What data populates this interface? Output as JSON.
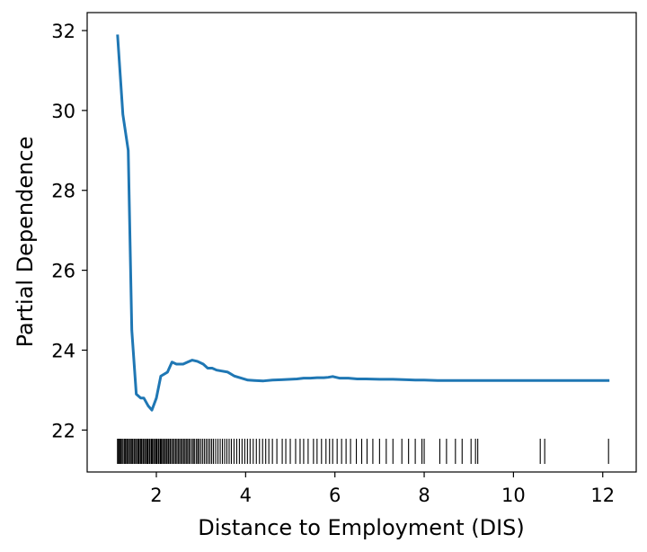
{
  "chart_data": {
    "type": "line",
    "title": "",
    "xlabel": "Distance to Employment (DIS)",
    "ylabel": "Partial Dependence",
    "xlim": [
      0.45,
      12.75
    ],
    "ylim": [
      20.95,
      32.45
    ],
    "xticks": [
      2,
      4,
      6,
      8,
      10,
      12
    ],
    "yticks": [
      22,
      24,
      26,
      28,
      30,
      32
    ],
    "grid": false,
    "line_color": "#1f77b4",
    "series": [
      {
        "x": [
          1.13,
          1.25,
          1.37,
          1.45,
          1.55,
          1.65,
          1.72,
          1.82,
          1.9,
          2.0,
          2.1,
          2.25,
          2.35,
          2.45,
          2.6,
          2.7,
          2.8,
          2.92,
          3.05,
          3.15,
          3.25,
          3.35,
          3.45,
          3.6,
          3.75,
          3.9,
          4.05,
          4.2,
          4.4,
          4.6,
          4.8,
          5.0,
          5.15,
          5.3,
          5.45,
          5.6,
          5.75,
          5.85,
          5.95,
          6.1,
          6.3,
          6.5,
          6.7,
          7.0,
          7.3,
          7.6,
          7.8,
          8.0,
          8.3,
          8.6,
          9.0,
          9.5,
          10.0,
          10.5,
          11.0,
          11.5,
          12.15
        ],
        "y": [
          31.9,
          29.9,
          29.0,
          24.5,
          22.9,
          22.8,
          22.8,
          22.6,
          22.5,
          22.8,
          23.35,
          23.45,
          23.7,
          23.65,
          23.65,
          23.7,
          23.75,
          23.72,
          23.65,
          23.55,
          23.55,
          23.5,
          23.48,
          23.45,
          23.35,
          23.3,
          23.25,
          23.24,
          23.23,
          23.25,
          23.26,
          23.27,
          23.28,
          23.3,
          23.3,
          23.31,
          23.31,
          23.32,
          23.34,
          23.3,
          23.3,
          23.28,
          23.28,
          23.27,
          23.27,
          23.26,
          23.25,
          23.25,
          23.24,
          23.24,
          23.24,
          23.24,
          23.24,
          23.24,
          23.24,
          23.24,
          23.24
        ]
      }
    ],
    "rug": [
      1.13,
      1.14,
      1.16,
      1.18,
      1.2,
      1.22,
      1.25,
      1.28,
      1.3,
      1.32,
      1.35,
      1.37,
      1.4,
      1.42,
      1.45,
      1.47,
      1.5,
      1.52,
      1.55,
      1.58,
      1.6,
      1.62,
      1.65,
      1.67,
      1.7,
      1.72,
      1.75,
      1.78,
      1.8,
      1.82,
      1.85,
      1.88,
      1.9,
      1.92,
      1.95,
      1.98,
      2.0,
      2.02,
      2.05,
      2.08,
      2.1,
      2.12,
      2.15,
      2.18,
      2.2,
      2.23,
      2.26,
      2.28,
      2.31,
      2.34,
      2.37,
      2.4,
      2.43,
      2.46,
      2.49,
      2.52,
      2.55,
      2.58,
      2.61,
      2.64,
      2.67,
      2.7,
      2.73,
      2.76,
      2.8,
      2.83,
      2.86,
      2.9,
      2.93,
      2.96,
      3.0,
      3.04,
      3.08,
      3.12,
      3.16,
      3.2,
      3.24,
      3.28,
      3.33,
      3.38,
      3.43,
      3.48,
      3.53,
      3.58,
      3.63,
      3.68,
      3.74,
      3.8,
      3.86,
      3.92,
      3.98,
      4.04,
      4.1,
      4.17,
      4.24,
      4.31,
      4.38,
      4.45,
      4.52,
      4.6,
      4.7,
      4.82,
      4.9,
      5.0,
      5.12,
      5.22,
      5.3,
      5.4,
      5.52,
      5.6,
      5.7,
      5.8,
      5.88,
      5.95,
      6.05,
      6.15,
      6.25,
      6.35,
      6.48,
      6.6,
      6.72,
      6.85,
      7.0,
      7.15,
      7.3,
      7.5,
      7.65,
      7.8,
      7.95,
      8.0,
      8.35,
      8.5,
      8.7,
      8.85,
      9.05,
      9.15,
      9.2,
      10.6,
      10.7,
      12.13
    ]
  }
}
